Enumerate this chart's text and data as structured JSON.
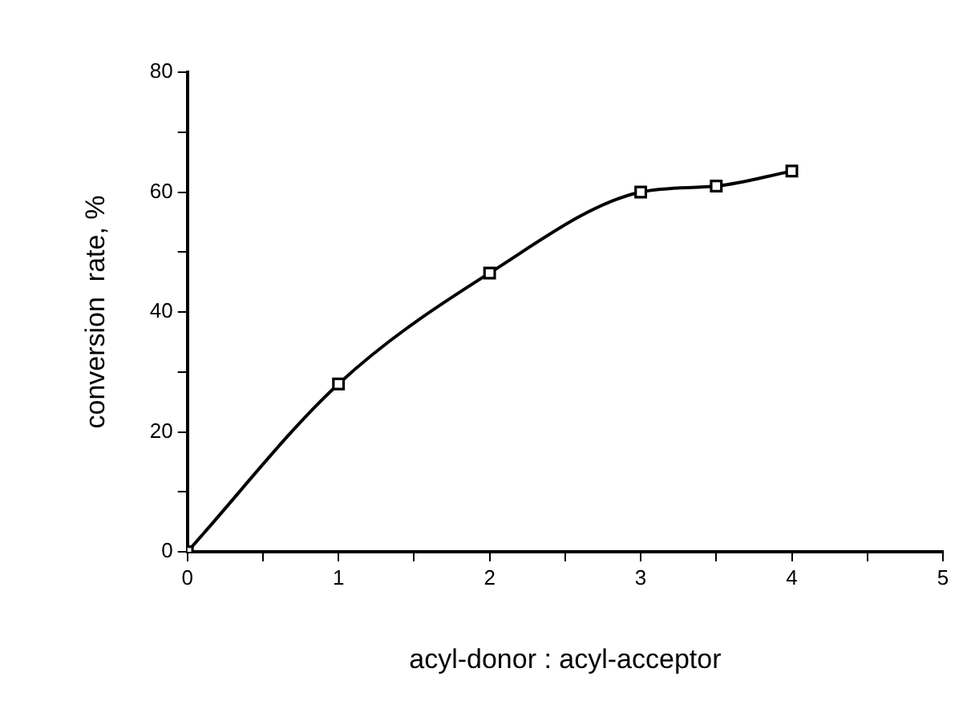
{
  "chart_data": {
    "type": "line",
    "xlabel": "acyl-donor : acyl-acceptor",
    "ylabel": "conversion  rate, %",
    "x": [
      0,
      1,
      2,
      3,
      3.5,
      4
    ],
    "series": [
      {
        "color": "#000000",
        "values": [
          0,
          28,
          46.5,
          60,
          61,
          63.5
        ]
      }
    ],
    "xlim": [
      0,
      5
    ],
    "xticks": [
      0,
      {
        "value": 0.5,
        "label": null
      },
      1,
      {
        "value": 1.5,
        "label": null
      },
      2,
      {
        "value": 2.5,
        "label": null
      },
      3,
      {
        "value": 3.5,
        "label": null
      },
      4,
      {
        "value": 4.5,
        "label": null
      },
      5
    ],
    "ylim": [
      0,
      80
    ],
    "yticks": [
      0,
      {
        "value": 10,
        "label": null
      },
      20,
      {
        "value": 30,
        "label": null
      },
      40,
      {
        "value": 50,
        "label": null
      },
      60,
      {
        "value": 70,
        "label": null
      },
      80
    ],
    "grid": false,
    "legend": false,
    "marker": "square",
    "line_style": "solid"
  }
}
